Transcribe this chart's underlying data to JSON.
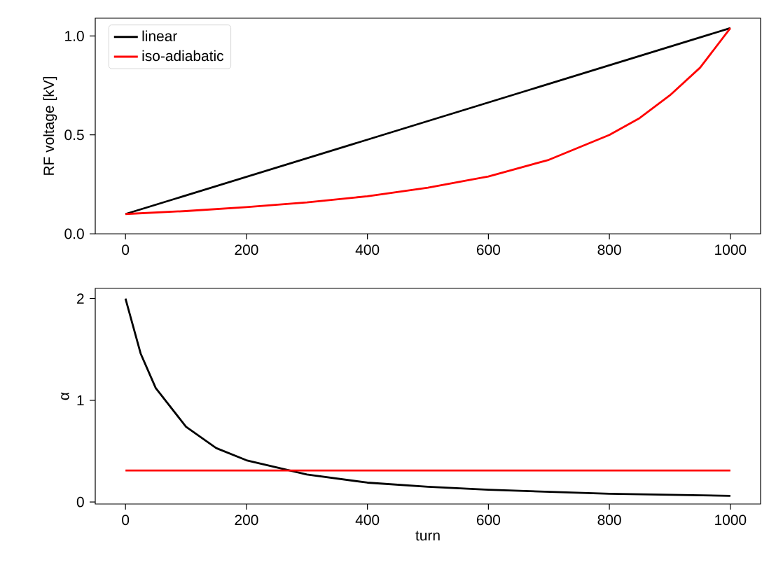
{
  "chart_data": [
    {
      "type": "line",
      "ylabel": "RF voltage [kV]",
      "xlim": [
        -50,
        1050
      ],
      "ylim": [
        0,
        1.09
      ],
      "xticks": [
        0,
        200,
        400,
        600,
        800,
        1000
      ],
      "yticks": [
        {
          "value": 0,
          "label": "0.0"
        },
        {
          "value": 0.5,
          "label": "0.5"
        },
        {
          "value": 1,
          "label": "1.0"
        }
      ],
      "legend": "top left",
      "line_style": "solid",
      "series": [
        {
          "name": "linear",
          "color": "#000000",
          "x": [
            0,
            1000
          ],
          "values": [
            0.1,
            1.04
          ]
        },
        {
          "name": "iso-adiabatic",
          "color": "#ff0000",
          "x": [
            0,
            100,
            200,
            300,
            400,
            500,
            600,
            700,
            800,
            850,
            900,
            950,
            1000
          ],
          "values": [
            0.1,
            0.115,
            0.135,
            0.159,
            0.19,
            0.233,
            0.29,
            0.374,
            0.5,
            0.585,
            0.7,
            0.84,
            1.04
          ]
        }
      ]
    },
    {
      "type": "line",
      "xlabel": "turn",
      "ylabel": "α",
      "xlim": [
        -50,
        1050
      ],
      "ylim": [
        -0.02,
        2.1
      ],
      "xticks": [
        0,
        200,
        400,
        600,
        800,
        1000
      ],
      "yticks": [
        0,
        1,
        2
      ],
      "line_style": "solid",
      "series": [
        {
          "color": "#000000",
          "x": [
            0,
            25,
            50,
            100,
            150,
            200,
            300,
            400,
            500,
            600,
            800,
            1000
          ],
          "values": [
            2.0,
            1.46,
            1.12,
            0.74,
            0.53,
            0.41,
            0.27,
            0.19,
            0.15,
            0.12,
            0.08,
            0.06
          ]
        },
        {
          "color": "#ff0000",
          "x": [
            0,
            1000
          ],
          "values": [
            0.31,
            0.31
          ]
        }
      ]
    }
  ]
}
